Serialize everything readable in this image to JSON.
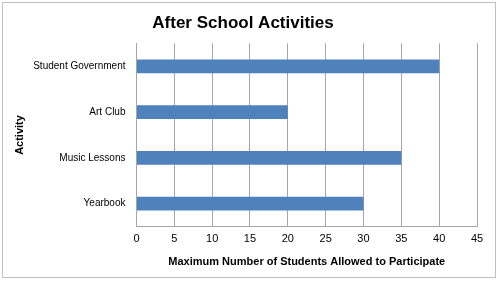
{
  "chart_data": {
    "type": "bar",
    "orientation": "horizontal",
    "title": "After School Activities",
    "x_label": "Maximum Number of Students Allowed to Participate",
    "y_label": "Activity",
    "categories": [
      "Student Government",
      "Art Club",
      "Music Lessons",
      "Yearbook"
    ],
    "values": [
      40,
      20,
      35,
      30
    ],
    "color": "#4f81bd",
    "xlim": [
      0,
      45
    ],
    "xticks": [
      0,
      5,
      10,
      15,
      20,
      25,
      30,
      35,
      40,
      45
    ],
    "grid": true
  }
}
